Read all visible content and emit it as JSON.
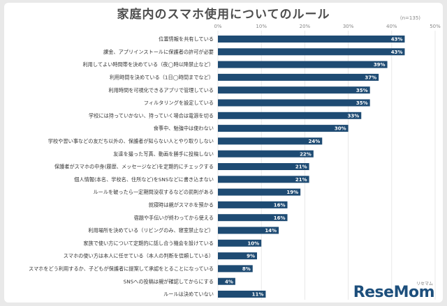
{
  "page": {
    "title": "家庭内のスマホ使用についてのルール",
    "note": "(n=135)",
    "logo_text": "ReseMom",
    "logo_kana": "リセマム"
  },
  "chart_data": {
    "type": "bar",
    "orientation": "horizontal",
    "title": "家庭内のスマホ使用についてのルール",
    "xlim": [
      0,
      50
    ],
    "xticks": [
      "0%",
      "10%",
      "20%",
      "30%",
      "40%",
      "50%"
    ],
    "grid": true,
    "bar_color": "#1e4b73",
    "categories": [
      "位置情報を共有している",
      "課金、アプリインストールに保護者の許可が必要",
      "利用してよい時間帯を決めている（夜◯時以降禁止など）",
      "利用時間を決めている（1日◯時間までなど）",
      "利用時間を可視化できるアプリで管理している",
      "フィルタリングを設定している",
      "学校には持っていかない、持っていく場合は電源を切る",
      "食事中、勉強中は使わない",
      "学校や習い事などの友だち以外の、保護者が知らない人とやり取りしない",
      "友達を撮った写真、動画を勝手に投稿しない",
      "保護者がスマホの中身(履歴、メッセージなど)を定期的にチェックする",
      "個人情報(本名、学校名、住所など)をSNSなどに書き込まない",
      "ルールを破ったら一定期間没収するなどの罰則がある",
      "就寝時は親がスマホを預かる",
      "宿題や手伝いが終わってから使える",
      "利用場所を決めている（リビングのみ、寝室禁止など）",
      "家族で使い方について定期的に話し合う機会を設けている",
      "スマホの使い方は本人に任せている（本人の判断を信頼している）",
      "スマホをどう利用するか、子どもが保護者に提案して承認をとることになっている",
      "SNSへの投稿は親が確認してからにする",
      "ルールは決めていない"
    ],
    "values": [
      43,
      43,
      39,
      37,
      35,
      35,
      33,
      30,
      24,
      22,
      21,
      21,
      19,
      16,
      16,
      14,
      10,
      9,
      8,
      4,
      11
    ],
    "value_labels": [
      "43%",
      "43%",
      "39%",
      "37%",
      "35%",
      "35%",
      "33%",
      "30%",
      "24%",
      "22%",
      "21%",
      "21%",
      "19%",
      "16%",
      "16%",
      "14%",
      "10%",
      "9%",
      "8%",
      "4%",
      "11%"
    ]
  }
}
